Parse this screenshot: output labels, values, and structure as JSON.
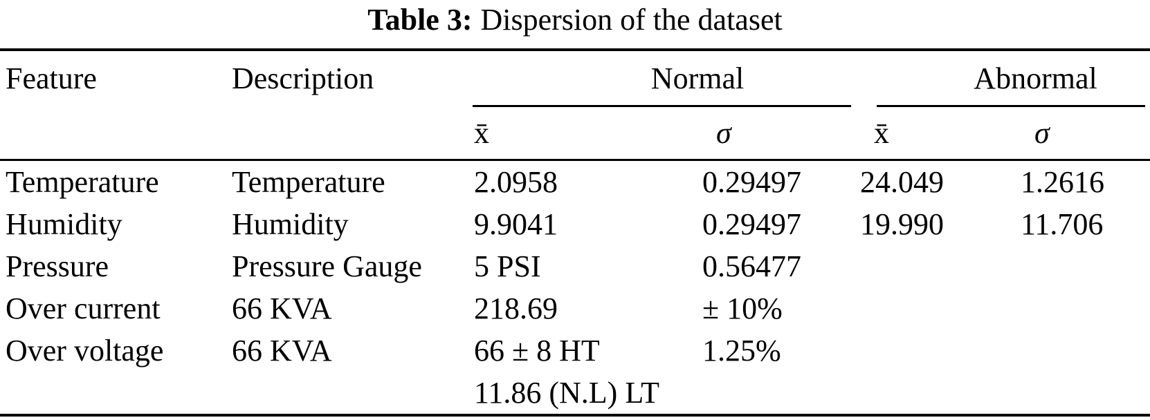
{
  "caption": {
    "label": "Table 3:",
    "text": "Dispersion of the dataset"
  },
  "header": {
    "feature": "Feature",
    "description": "Description",
    "normal": "Normal",
    "abnormal": "Abnormal",
    "mean": "x̄",
    "sigma": "σ"
  },
  "rows": [
    {
      "feature": "Temperature",
      "description": "Temperature",
      "normal_mean": "2.0958",
      "normal_mean_line2": "",
      "normal_sigma": "0.29497",
      "abnormal_mean": "24.049",
      "abnormal_sigma": "1.2616"
    },
    {
      "feature": "Humidity",
      "description": "Humidity",
      "normal_mean": "9.9041",
      "normal_mean_line2": "",
      "normal_sigma": "0.29497",
      "abnormal_mean": "19.990",
      "abnormal_sigma": "11.706"
    },
    {
      "feature": "Pressure",
      "description": "Pressure Gauge",
      "normal_mean": "5 PSI",
      "normal_mean_line2": "",
      "normal_sigma": "0.56477",
      "abnormal_mean": "",
      "abnormal_sigma": ""
    },
    {
      "feature": "Over current",
      "description": "66 KVA",
      "normal_mean": "218.69",
      "normal_mean_line2": "",
      "normal_sigma": "± 10%",
      "abnormal_mean": "",
      "abnormal_sigma": ""
    },
    {
      "feature": "Over voltage",
      "description": "66 KVA",
      "normal_mean": "66 ± 8 HT",
      "normal_mean_line2": "11.86 (N.L) LT",
      "normal_sigma": "1.25%",
      "abnormal_mean": "",
      "abnormal_sigma": ""
    }
  ],
  "colors": {
    "text": "#000000",
    "background": "#ffffff",
    "rule": "#000000"
  }
}
